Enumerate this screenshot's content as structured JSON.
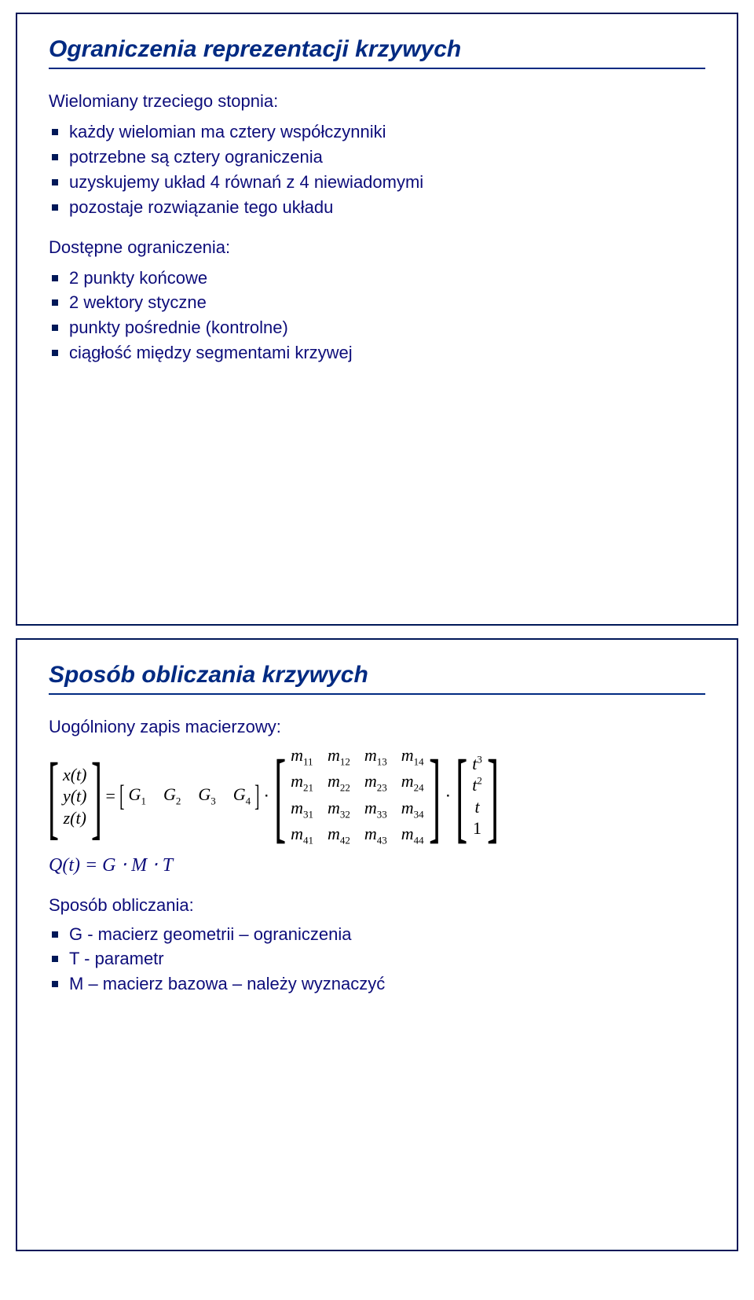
{
  "slide1": {
    "title": "Ograniczenia reprezentacji krzywych",
    "lead1": "Wielomiany trzeciego stopnia:",
    "b1": [
      "każdy wielomian ma cztery współczynniki",
      "potrzebne są cztery ograniczenia",
      "uzyskujemy układ 4 równań z 4 niewiadomymi",
      "pozostaje rozwiązanie tego układu"
    ],
    "lead2": "Dostępne ograniczenia:",
    "b2": [
      "2 punkty końcowe",
      "2 wektory styczne",
      "punkty pośrednie (kontrolne)",
      "ciągłość między segmentami krzywej"
    ]
  },
  "slide2": {
    "title": "Sposób obliczania krzywych",
    "lead1": "Uogólniony zapis macierzowy:",
    "vec_xyz": [
      "x(t)",
      "y(t)",
      "z(t)"
    ],
    "eq": "=",
    "G_row": [
      "G",
      "G",
      "G",
      "G"
    ],
    "G_sub": [
      "1",
      "2",
      "3",
      "4"
    ],
    "dot": "⋅",
    "m_rows": [
      [
        "m",
        "m",
        "m",
        "m"
      ],
      [
        "m",
        "m",
        "m",
        "m"
      ],
      [
        "m",
        "m",
        "m",
        "m"
      ],
      [
        "m",
        "m",
        "m",
        "m"
      ]
    ],
    "m_sub": [
      [
        "11",
        "12",
        "13",
        "14"
      ],
      [
        "21",
        "22",
        "23",
        "24"
      ],
      [
        "31",
        "32",
        "33",
        "34"
      ],
      [
        "41",
        "42",
        "43",
        "44"
      ]
    ],
    "t_col": [
      "t",
      "t",
      "t",
      "1"
    ],
    "t_sup": [
      "3",
      "2",
      "",
      ""
    ],
    "qline": "Q(t) = G ⋅ M ⋅ T",
    "lead2": "Sposób obliczania:",
    "b2": [
      "G - macierz geometrii – ograniczenia",
      "T - parametr",
      "M – macierz bazowa – należy wyznaczyć"
    ]
  },
  "colors": {
    "title": "#002a82",
    "text": "#0d0d7a",
    "border": "#001858"
  }
}
